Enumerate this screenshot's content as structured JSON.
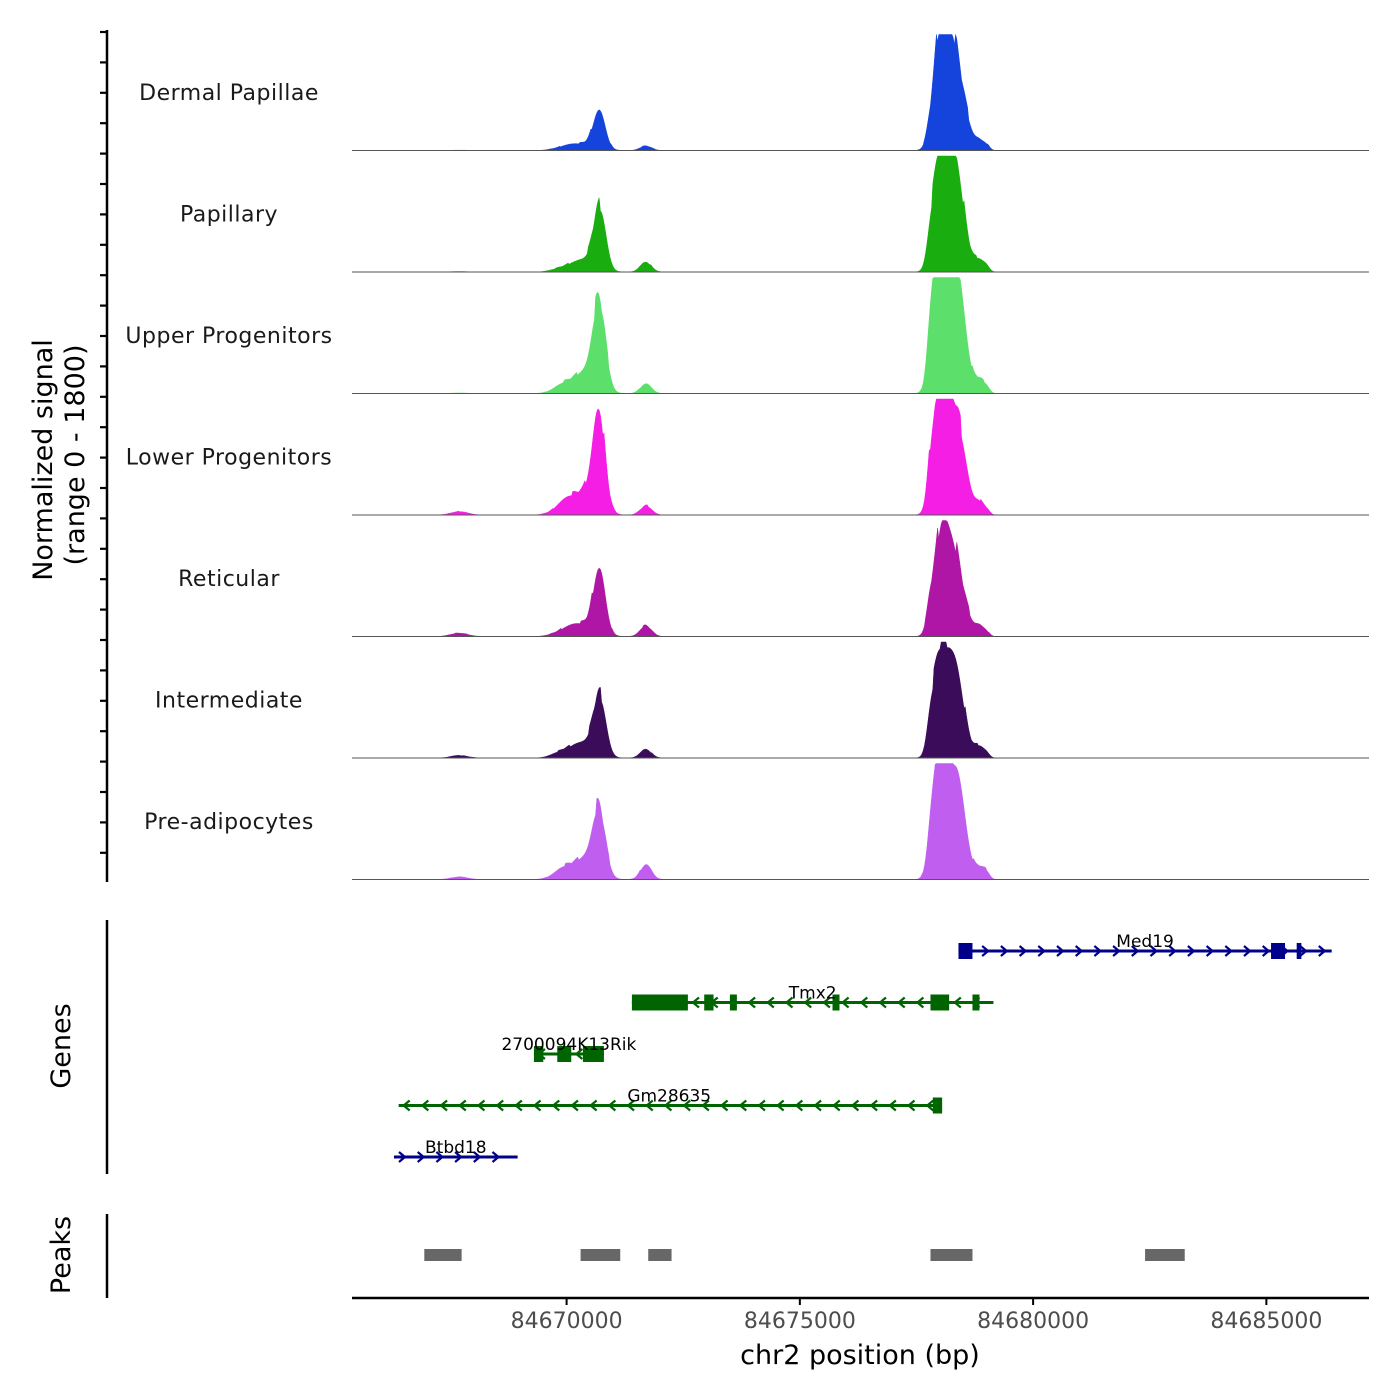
{
  "chart_data": {
    "type": "area",
    "subtype": "genome-coverage-track",
    "y_axis_title_line1": "Normalized signal",
    "y_axis_title_line2": "(range 0 - 1800)",
    "y_range": [
      0,
      1800
    ],
    "xlabel": "chr2 position (bp)",
    "xlim": [
      84665400,
      84687200
    ],
    "x_ticks": [
      84670000,
      84675000,
      84680000,
      84685000
    ],
    "x_tick_labels": [
      "84670000",
      "84675000",
      "84680000",
      "84685000"
    ],
    "peak_centers": [
      {
        "pos": 84669950,
        "w": 220
      },
      {
        "pos": 84670400,
        "w": 260
      },
      {
        "pos": 84670700,
        "w": 130
      },
      {
        "pos": 84671700,
        "w": 120
      },
      {
        "pos": 84667700,
        "w": 180
      },
      {
        "pos": 84677800,
        "w": 80
      },
      {
        "pos": 84678000,
        "w": 140
      },
      {
        "pos": 84678300,
        "w": 210
      },
      {
        "pos": 84678850,
        "w": 90
      },
      {
        "pos": 84679000,
        "w": 70
      }
    ],
    "series": [
      {
        "name": "Dermal Papillae",
        "color": "#1444dc",
        "values": [
          40,
          80,
          410,
          55,
          4,
          120,
          1080,
          1220,
          90,
          60
        ]
      },
      {
        "name": "Papillary",
        "color": "#19ad0f",
        "values": [
          50,
          130,
          720,
          115,
          6,
          200,
          1130,
          1290,
          110,
          60
        ]
      },
      {
        "name": "Upper Progenitors",
        "color": "#5ddf6b",
        "values": [
          90,
          230,
          1020,
          110,
          6,
          420,
          1380,
          1570,
          140,
          70
        ]
      },
      {
        "name": "Lower Progenitors",
        "color": "#f41ee4",
        "values": [
          120,
          280,
          1060,
          110,
          40,
          350,
          1120,
          1320,
          130,
          60
        ]
      },
      {
        "name": "Reticular",
        "color": "#b016a5",
        "values": [
          70,
          150,
          690,
          130,
          40,
          230,
          900,
          1000,
          100,
          50
        ]
      },
      {
        "name": "Intermediate",
        "color": "#3a0c5a",
        "values": [
          80,
          160,
          690,
          100,
          30,
          240,
          980,
          1060,
          110,
          50
        ]
      },
      {
        "name": "Pre-adipocytes",
        "color": "#c05ef0",
        "values": [
          110,
          230,
          760,
          170,
          30,
          260,
          1220,
          1350,
          120,
          80
        ]
      }
    ]
  },
  "genes_panel": {
    "label": "Genes",
    "genes": [
      {
        "name": "Med19",
        "strand": "+",
        "color": "#00008b",
        "start": 84678400,
        "end": 84686400,
        "exons": [
          [
            84678400,
            84678700
          ],
          [
            84685100,
            84685400
          ],
          [
            84685650,
            84685750
          ]
        ]
      },
      {
        "name": "Tmx2",
        "strand": "-",
        "color": "#006400",
        "start": 84671400,
        "end": 84679150,
        "exons": [
          [
            84671400,
            84672600
          ],
          [
            84672950,
            84673150
          ],
          [
            84673500,
            84673650
          ],
          [
            84675700,
            84675850
          ],
          [
            84677800,
            84678200
          ],
          [
            84678700,
            84678850
          ]
        ]
      },
      {
        "name": "2700094K13Rik",
        "strand": "-",
        "color": "#006400",
        "start": 84669300,
        "end": 84670800,
        "exons": [
          [
            84669300,
            84669500
          ],
          [
            84669800,
            84670100
          ],
          [
            84670350,
            84670800
          ]
        ]
      },
      {
        "name": "Gm28635",
        "strand": "-",
        "color": "#006400",
        "start": 84666400,
        "end": 84678000,
        "exons": [
          [
            84677850,
            84678050
          ]
        ]
      },
      {
        "name": "Btbd18",
        "strand": "+",
        "color": "#00008b",
        "start": 84666300,
        "end": 84668950,
        "exons": []
      }
    ]
  },
  "peaks_panel": {
    "label": "Peaks",
    "color": "#676767",
    "peaks": [
      [
        84666950,
        84667750
      ],
      [
        84670300,
        84671150
      ],
      [
        84671750,
        84672250
      ],
      [
        84677800,
        84678700
      ],
      [
        84682400,
        84683250
      ]
    ]
  }
}
